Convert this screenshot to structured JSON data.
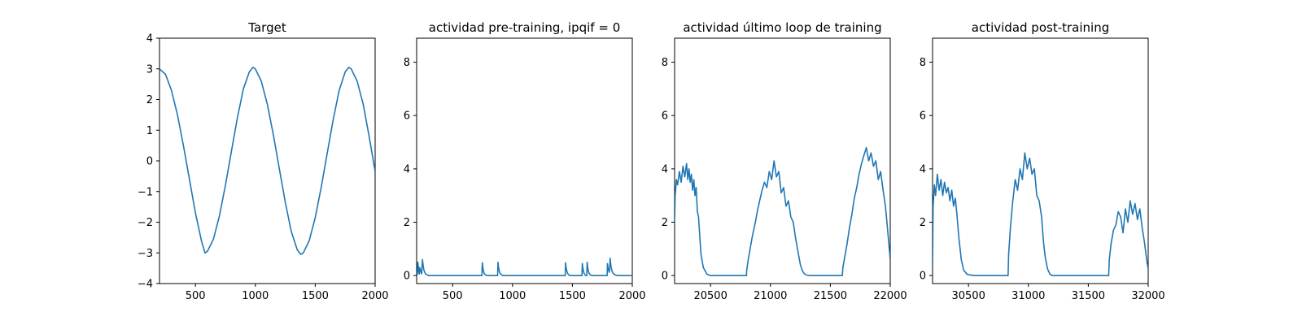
{
  "figure": {
    "background": "#ffffff",
    "line_color": "#1f77b4"
  },
  "chart_data": [
    {
      "type": "line",
      "title": "Target",
      "xlim": [
        200,
        2000
      ],
      "ylim": [
        -4,
        4
      ],
      "xticks": [
        500,
        1000,
        1500,
        2000
      ],
      "xtick_labels": [
        "500",
        "1000",
        "1500",
        "2000"
      ],
      "yticks": [
        -4,
        -3,
        -2,
        -1,
        0,
        1,
        2,
        3,
        4
      ],
      "ytick_labels": [
        "−4",
        "−3",
        "−2",
        "−1",
        "0",
        "1",
        "2",
        "3",
        "4"
      ],
      "grid": false,
      "series": [
        {
          "x": [
            200,
            250,
            300,
            350,
            400,
            450,
            500,
            550,
            580,
            600,
            650,
            700,
            750,
            800,
            850,
            900,
            950,
            980,
            1000,
            1050,
            1100,
            1150,
            1200,
            1250,
            1300,
            1350,
            1380,
            1400,
            1450,
            1500,
            1550,
            1600,
            1650,
            1700,
            1750,
            1780,
            1800,
            1850,
            1900,
            1950,
            2000
          ],
          "y": [
            3.0,
            2.82,
            2.3,
            1.5,
            0.5,
            -0.6,
            -1.7,
            -2.6,
            -3.0,
            -2.95,
            -2.55,
            -1.8,
            -0.8,
            0.3,
            1.4,
            2.35,
            2.9,
            3.05,
            3.0,
            2.6,
            1.85,
            0.85,
            -0.25,
            -1.35,
            -2.3,
            -2.9,
            -3.05,
            -3.0,
            -2.6,
            -1.85,
            -0.85,
            0.25,
            1.35,
            2.3,
            2.9,
            3.05,
            3.0,
            2.6,
            1.85,
            0.8,
            -0.35
          ]
        }
      ]
    },
    {
      "type": "line",
      "title": "actividad pre-training, ipqif = 0",
      "xlim": [
        200,
        2000
      ],
      "ylim": [
        -0.3,
        8.9
      ],
      "xticks": [
        500,
        1000,
        1500,
        2000
      ],
      "xtick_labels": [
        "500",
        "1000",
        "1500",
        "2000"
      ],
      "yticks": [
        0,
        2,
        4,
        6,
        8
      ],
      "ytick_labels": [
        "0",
        "2",
        "4",
        "6",
        "8"
      ],
      "grid": false,
      "series": [
        {
          "x": [
            200,
            206,
            210,
            214,
            218,
            222,
            226,
            232,
            236,
            242,
            248,
            254,
            262,
            275,
            300,
            745,
            748,
            752,
            756,
            762,
            770,
            780,
            800,
            876,
            879,
            883,
            888,
            895,
            905,
            920,
            1440,
            1443,
            1447,
            1452,
            1458,
            1466,
            1475,
            1490,
            1580,
            1583,
            1587,
            1592,
            1598,
            1605,
            1612,
            1620,
            1623,
            1627,
            1632,
            1638,
            1646,
            1655,
            1670,
            1790,
            1793,
            1797,
            1802,
            1808,
            1812,
            1815,
            1819,
            1824,
            1830,
            1838,
            1848,
            1860,
            1880,
            1920,
            2000
          ],
          "y": [
            0.0,
            0.05,
            0.5,
            0.32,
            0.15,
            0.06,
            0.3,
            0.22,
            0.12,
            0.07,
            0.6,
            0.38,
            0.18,
            0.06,
            0.0,
            0.0,
            0.48,
            0.32,
            0.2,
            0.1,
            0.04,
            0.01,
            0.0,
            0.0,
            0.5,
            0.33,
            0.2,
            0.1,
            0.04,
            0.0,
            0.0,
            0.48,
            0.32,
            0.2,
            0.1,
            0.04,
            0.01,
            0.0,
            0.0,
            0.45,
            0.3,
            0.18,
            0.08,
            0.03,
            0.0,
            0.0,
            0.5,
            0.33,
            0.2,
            0.1,
            0.04,
            0.01,
            0.0,
            0.0,
            0.45,
            0.3,
            0.2,
            0.12,
            0.3,
            0.65,
            0.45,
            0.3,
            0.18,
            0.1,
            0.05,
            0.02,
            0.0,
            0.0,
            0.0
          ]
        }
      ]
    },
    {
      "type": "line",
      "title": "actividad último loop de training",
      "xlim": [
        20200,
        22000
      ],
      "ylim": [
        -0.3,
        8.9
      ],
      "xticks": [
        20500,
        21000,
        21500,
        22000
      ],
      "xtick_labels": [
        "20500",
        "21000",
        "21500",
        "22000"
      ],
      "yticks": [
        0,
        2,
        4,
        6,
        8
      ],
      "ytick_labels": [
        "0",
        "2",
        "4",
        "6",
        "8"
      ],
      "grid": false,
      "series": [
        {
          "x": [
            20200,
            20205,
            20215,
            20225,
            20240,
            20255,
            20270,
            20285,
            20300,
            20310,
            20320,
            20330,
            20340,
            20350,
            20360,
            20370,
            20380,
            20390,
            20400,
            20410,
            20420,
            20440,
            20470,
            20500,
            20600,
            20800,
            20802,
            20815,
            20830,
            20850,
            20870,
            20890,
            20910,
            20930,
            20950,
            20970,
            20990,
            21010,
            21030,
            21050,
            21070,
            21090,
            21110,
            21130,
            21150,
            21170,
            21190,
            21210,
            21230,
            21250,
            21265,
            21280,
            21300,
            21330,
            21400,
            21600,
            21605,
            21620,
            21640,
            21660,
            21680,
            21700,
            21720,
            21740,
            21760,
            21780,
            21800,
            21820,
            21840,
            21860,
            21880,
            21900,
            21920,
            21940,
            21960,
            21980,
            22000
          ],
          "y": [
            2.0,
            3.0,
            3.6,
            3.4,
            3.9,
            3.5,
            4.1,
            3.7,
            4.2,
            3.6,
            4.0,
            3.5,
            3.8,
            3.2,
            3.6,
            3.0,
            3.3,
            2.4,
            2.2,
            1.5,
            0.8,
            0.3,
            0.05,
            0.0,
            0.0,
            0.0,
            0.2,
            0.6,
            1.0,
            1.5,
            1.9,
            2.4,
            2.8,
            3.2,
            3.5,
            3.3,
            3.9,
            3.6,
            4.3,
            3.7,
            3.9,
            3.1,
            3.3,
            2.6,
            2.8,
            2.2,
            2.0,
            1.4,
            0.9,
            0.4,
            0.2,
            0.08,
            0.02,
            0.0,
            0.0,
            0.0,
            0.3,
            0.7,
            1.2,
            1.8,
            2.3,
            2.9,
            3.3,
            3.8,
            4.2,
            4.5,
            4.8,
            4.3,
            4.6,
            4.1,
            4.3,
            3.6,
            3.9,
            3.2,
            2.6,
            1.6,
            0.6
          ]
        }
      ]
    },
    {
      "type": "line",
      "title": "actividad post-training",
      "xlim": [
        30200,
        32000
      ],
      "ylim": [
        -0.3,
        8.9
      ],
      "xticks": [
        30500,
        31000,
        31500,
        32000
      ],
      "xtick_labels": [
        "30500",
        "31000",
        "31500",
        "32000"
      ],
      "yticks": [
        0,
        2,
        4,
        6,
        8
      ],
      "ytick_labels": [
        "0",
        "2",
        "4",
        "6",
        "8"
      ],
      "grid": false,
      "series": [
        {
          "x": [
            30200,
            30205,
            30215,
            30225,
            30240,
            30255,
            30270,
            30285,
            30300,
            30315,
            30330,
            30345,
            30360,
            30375,
            30390,
            30405,
            30420,
            30440,
            30460,
            30490,
            30550,
            30830,
            30835,
            30850,
            30870,
            30890,
            30910,
            30930,
            30950,
            30970,
            30990,
            31010,
            31030,
            31050,
            31070,
            31090,
            31110,
            31125,
            31140,
            31160,
            31180,
            31200,
            31250,
            31670,
            31675,
            31690,
            31710,
            31730,
            31750,
            31770,
            31790,
            31810,
            31830,
            31850,
            31870,
            31890,
            31910,
            31930,
            31950,
            31970,
            31990,
            32000
          ],
          "y": [
            0.4,
            2.6,
            3.4,
            3.0,
            3.8,
            3.2,
            3.6,
            3.0,
            3.5,
            3.1,
            3.3,
            2.8,
            3.2,
            2.6,
            2.9,
            2.2,
            1.4,
            0.6,
            0.2,
            0.04,
            0.0,
            0.0,
            0.8,
            1.8,
            2.8,
            3.6,
            3.2,
            4.0,
            3.6,
            4.6,
            4.0,
            4.4,
            3.8,
            4.0,
            3.0,
            2.8,
            2.2,
            1.3,
            0.7,
            0.25,
            0.05,
            0.0,
            0.0,
            0.0,
            0.6,
            1.2,
            1.7,
            1.9,
            2.4,
            2.2,
            1.6,
            2.5,
            2.0,
            2.8,
            2.3,
            2.7,
            2.1,
            2.5,
            1.8,
            1.2,
            0.5,
            0.25
          ]
        }
      ]
    }
  ]
}
